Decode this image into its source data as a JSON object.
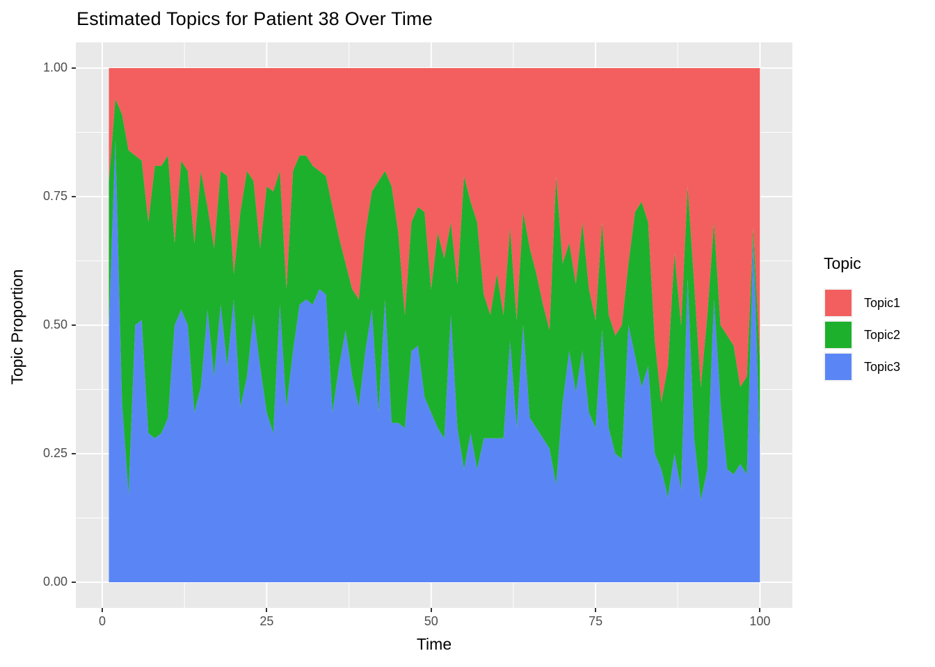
{
  "title": "Estimated Topics for Patient 38 Over Time",
  "x_axis": {
    "label": "Time",
    "ticks": [
      {
        "value": 0,
        "label": "0"
      },
      {
        "value": 25,
        "label": "25"
      },
      {
        "value": 50,
        "label": "50"
      },
      {
        "value": 75,
        "label": "75"
      },
      {
        "value": 100,
        "label": "100"
      }
    ],
    "minor_ticks": [
      12.5,
      37.5,
      62.5,
      87.5
    ],
    "range": [
      0,
      100
    ]
  },
  "y_axis": {
    "label": "Topic Proportion",
    "ticks": [
      {
        "value": 0.0,
        "label": "0.00"
      },
      {
        "value": 0.25,
        "label": "0.25"
      },
      {
        "value": 0.5,
        "label": "0.50"
      },
      {
        "value": 0.75,
        "label": "0.75"
      },
      {
        "value": 1.0,
        "label": "1.00"
      }
    ],
    "minor_ticks": [
      0.125,
      0.375,
      0.625,
      0.875
    ],
    "range": [
      0,
      1
    ]
  },
  "legend": {
    "title": "Topic",
    "entries": [
      {
        "label": "Topic1",
        "color": "#F25F5E"
      },
      {
        "label": "Topic2",
        "color": "#1DB02C"
      },
      {
        "label": "Topic3",
        "color": "#5A86F5"
      }
    ]
  },
  "colors": {
    "panel_background": "#E9E9E9",
    "grid": "#FFFFFF",
    "tick_text": "#4D4D4D",
    "tick_mark": "#333333",
    "topic1": "#F25F5E",
    "topic2": "#1DB02C",
    "topic3": "#5A86F5"
  },
  "chart_data": {
    "type": "area",
    "stacked": true,
    "title": "Estimated Topics for Patient 38 Over Time",
    "xlabel": "Time",
    "ylabel": "Topic Proportion",
    "xlim": [
      0,
      100
    ],
    "ylim": [
      0,
      1
    ],
    "grid": true,
    "legend_position": "right",
    "stack_order_bottom_to_top": [
      "Topic3",
      "Topic2",
      "Topic1"
    ],
    "x": [
      1,
      2,
      3,
      4,
      5,
      6,
      7,
      8,
      9,
      10,
      11,
      12,
      13,
      14,
      15,
      16,
      17,
      18,
      19,
      20,
      21,
      22,
      23,
      24,
      25,
      26,
      27,
      28,
      29,
      30,
      31,
      32,
      33,
      34,
      35,
      36,
      37,
      38,
      39,
      40,
      41,
      42,
      43,
      44,
      45,
      46,
      47,
      48,
      49,
      50,
      51,
      52,
      53,
      54,
      55,
      56,
      57,
      58,
      59,
      60,
      61,
      62,
      63,
      64,
      65,
      66,
      67,
      68,
      69,
      70,
      71,
      72,
      73,
      74,
      75,
      76,
      77,
      78,
      79,
      80,
      81,
      82,
      83,
      84,
      85,
      86,
      87,
      88,
      89,
      90,
      91,
      92,
      93,
      94,
      95,
      96,
      97,
      98,
      99,
      100
    ],
    "series": [
      {
        "name": "Topic1",
        "values": [
          0.22,
          0.06,
          0.09,
          0.16,
          0.17,
          0.18,
          0.3,
          0.19,
          0.19,
          0.17,
          0.34,
          0.18,
          0.2,
          0.34,
          0.2,
          0.27,
          0.35,
          0.2,
          0.21,
          0.4,
          0.28,
          0.2,
          0.22,
          0.35,
          0.23,
          0.24,
          0.2,
          0.43,
          0.2,
          0.17,
          0.17,
          0.19,
          0.2,
          0.21,
          0.27,
          0.33,
          0.38,
          0.43,
          0.45,
          0.32,
          0.24,
          0.22,
          0.2,
          0.23,
          0.32,
          0.48,
          0.3,
          0.27,
          0.28,
          0.43,
          0.32,
          0.37,
          0.3,
          0.42,
          0.21,
          0.26,
          0.3,
          0.44,
          0.48,
          0.4,
          0.48,
          0.31,
          0.49,
          0.28,
          0.35,
          0.4,
          0.46,
          0.51,
          0.21,
          0.38,
          0.34,
          0.42,
          0.3,
          0.43,
          0.49,
          0.3,
          0.48,
          0.52,
          0.5,
          0.38,
          0.28,
          0.26,
          0.3,
          0.53,
          0.65,
          0.58,
          0.36,
          0.5,
          0.23,
          0.42,
          0.62,
          0.48,
          0.3,
          0.5,
          0.52,
          0.54,
          0.62,
          0.6,
          0.31,
          0.57
        ]
      },
      {
        "name": "Topic2",
        "values": [
          0.28,
          0.08,
          0.56,
          0.67,
          0.33,
          0.31,
          0.41,
          0.53,
          0.52,
          0.51,
          0.16,
          0.29,
          0.3,
          0.33,
          0.42,
          0.2,
          0.25,
          0.26,
          0.37,
          0.05,
          0.38,
          0.4,
          0.26,
          0.23,
          0.44,
          0.47,
          0.26,
          0.23,
          0.35,
          0.29,
          0.28,
          0.27,
          0.23,
          0.23,
          0.4,
          0.25,
          0.13,
          0.17,
          0.21,
          0.23,
          0.23,
          0.45,
          0.25,
          0.46,
          0.37,
          0.22,
          0.25,
          0.27,
          0.36,
          0.24,
          0.38,
          0.35,
          0.18,
          0.28,
          0.57,
          0.45,
          0.48,
          0.28,
          0.24,
          0.32,
          0.24,
          0.22,
          0.21,
          0.22,
          0.33,
          0.3,
          0.26,
          0.23,
          0.6,
          0.27,
          0.21,
          0.21,
          0.25,
          0.24,
          0.21,
          0.21,
          0.22,
          0.23,
          0.26,
          0.12,
          0.28,
          0.36,
          0.28,
          0.22,
          0.13,
          0.255,
          0.39,
          0.32,
          0.18,
          0.3,
          0.22,
          0.3,
          0.15,
          0.15,
          0.26,
          0.25,
          0.15,
          0.19,
          0.02,
          0.175
        ]
      },
      {
        "name": "Topic3",
        "values": [
          0.5,
          0.86,
          0.35,
          0.17,
          0.5,
          0.51,
          0.29,
          0.28,
          0.29,
          0.32,
          0.5,
          0.53,
          0.5,
          0.33,
          0.38,
          0.53,
          0.4,
          0.54,
          0.42,
          0.55,
          0.34,
          0.4,
          0.52,
          0.42,
          0.33,
          0.29,
          0.54,
          0.34,
          0.45,
          0.54,
          0.55,
          0.54,
          0.57,
          0.56,
          0.33,
          0.42,
          0.49,
          0.4,
          0.34,
          0.45,
          0.53,
          0.33,
          0.55,
          0.31,
          0.31,
          0.3,
          0.45,
          0.46,
          0.36,
          0.33,
          0.3,
          0.28,
          0.52,
          0.3,
          0.22,
          0.29,
          0.22,
          0.28,
          0.28,
          0.28,
          0.28,
          0.47,
          0.3,
          0.5,
          0.32,
          0.3,
          0.28,
          0.26,
          0.19,
          0.35,
          0.45,
          0.37,
          0.45,
          0.33,
          0.3,
          0.49,
          0.3,
          0.25,
          0.24,
          0.5,
          0.44,
          0.38,
          0.42,
          0.25,
          0.22,
          0.165,
          0.25,
          0.18,
          0.59,
          0.28,
          0.16,
          0.22,
          0.55,
          0.35,
          0.22,
          0.21,
          0.23,
          0.21,
          0.67,
          0.255
        ]
      }
    ]
  }
}
